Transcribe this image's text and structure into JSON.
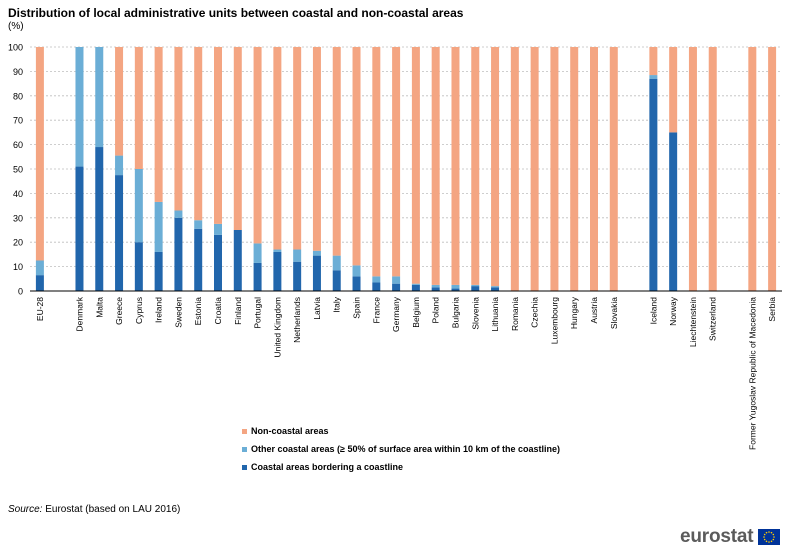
{
  "chart_data": {
    "type": "bar",
    "stacked": true,
    "title": "Distribution of local administrative units between coastal and non-coastal areas",
    "unit": "(%)",
    "ylim": [
      0,
      100
    ],
    "yticks": [
      0,
      10,
      20,
      30,
      40,
      50,
      60,
      70,
      80,
      90,
      100
    ],
    "grid": true,
    "legend_position": "bottom",
    "categories": [
      "EU-28",
      "",
      "Denmark",
      "Malta",
      "Greece",
      "Cyprus",
      "Ireland",
      "Sweden",
      "Estonia",
      "Croatia",
      "Finland",
      "Portugal",
      "United Kingdom",
      "Netherlands",
      "Latvia",
      "Italy",
      "Spain",
      "France",
      "Germany",
      "Belgium",
      "Poland",
      "Bulgaria",
      "Slovenia",
      "Lithuania",
      "Romania",
      "Czechia",
      "Luxembourg",
      "Hungary",
      "Austria",
      "Slovakia",
      "",
      "Iceland",
      "Norway",
      "Liechtenstein",
      "Switzerland",
      "",
      "Former Yugoslav Republic of Macedonia",
      "Serbia"
    ],
    "series": [
      {
        "name": "Coastal areas bordering a coastline",
        "color": "#2166ac",
        "values": [
          6.5,
          null,
          51,
          59,
          47.5,
          20,
          16,
          30,
          25.5,
          23,
          25,
          11.5,
          16,
          12,
          14.5,
          8.5,
          6,
          3.5,
          3,
          2.5,
          1.5,
          1,
          2,
          1.5,
          0,
          0,
          0,
          0,
          0,
          0,
          null,
          87,
          65,
          0,
          0,
          null,
          0,
          0
        ]
      },
      {
        "name": "Other coastal areas (≥ 50% of surface area within 10 km of the coastline)",
        "color": "#6baed6",
        "values": [
          6,
          null,
          49,
          41,
          8,
          30,
          20.5,
          3,
          3.5,
          4.5,
          0,
          8,
          1,
          5,
          2,
          6,
          4.5,
          2.5,
          3,
          0.5,
          1,
          1.5,
          0.5,
          0.5,
          0,
          0,
          0,
          0,
          0,
          0,
          null,
          1.5,
          0,
          0,
          0,
          null,
          0,
          0
        ]
      },
      {
        "name": "Non-coastal areas",
        "color": "#f4a582",
        "values": [
          87.5,
          null,
          0,
          0,
          44.5,
          50,
          63.5,
          67,
          71,
          72.5,
          75,
          80.5,
          83,
          83,
          83.5,
          85.5,
          89.5,
          94,
          94,
          97,
          97.5,
          97.5,
          97.5,
          98,
          100,
          100,
          100,
          100,
          100,
          100,
          null,
          11.5,
          35,
          100,
          100,
          null,
          100,
          100
        ]
      }
    ]
  },
  "source": {
    "label": "Source:",
    "text": "Eurostat (based on LAU 2016)"
  },
  "logo": {
    "text": "eurostat",
    "flag_color": "#003399",
    "star_color": "#ffcc00"
  }
}
